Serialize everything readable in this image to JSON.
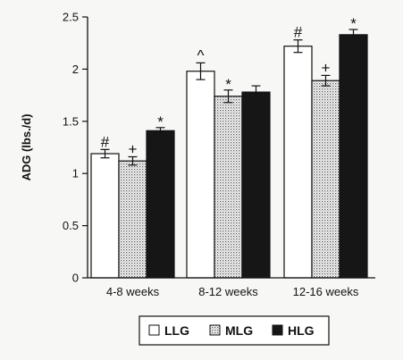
{
  "chart_data": {
    "type": "bar",
    "ylabel": "ADG (lbs./d)",
    "xlabel": "",
    "ylim": [
      0,
      2.5
    ],
    "yticks": [
      0,
      0.5,
      1,
      1.5,
      2,
      2.5
    ],
    "ytick_labels": [
      "0",
      "0.5",
      "1",
      "1.5",
      "2",
      "2.5"
    ],
    "grid": false,
    "legend_position": "bottom",
    "categories": [
      "4-8 weeks",
      "8-12 weeks",
      "12-16 weeks"
    ],
    "series": [
      {
        "name": "LLG",
        "values": [
          1.19,
          1.98,
          2.22
        ],
        "errors": [
          0.04,
          0.08,
          0.06
        ],
        "annotations": [
          "#",
          "^",
          "#"
        ],
        "fill": "white"
      },
      {
        "name": "MLG",
        "values": [
          1.12,
          1.74,
          1.89
        ],
        "errors": [
          0.04,
          0.06,
          0.05
        ],
        "annotations": [
          "+",
          "*",
          "+"
        ],
        "fill": "dotted"
      },
      {
        "name": "HLG",
        "values": [
          1.41,
          1.78,
          2.33
        ],
        "errors": [
          0.03,
          0.06,
          0.05
        ],
        "annotations": [
          "*",
          "",
          "*"
        ],
        "fill": "black"
      }
    ]
  }
}
